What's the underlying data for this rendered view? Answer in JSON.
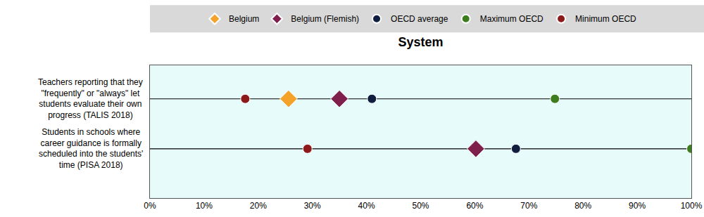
{
  "chart_data": {
    "type": "dot",
    "title": "System",
    "orientation": "horizontal",
    "legend": "top",
    "grid": false,
    "categories": [
      "Teachers reporting that they \"frequently\" or \"always\" let students evaluate their own progress (TALIS 2018)",
      "Students in schools where career guidance is formally scheduled into the students' time (PISA 2018)"
    ],
    "series": [
      {
        "name": "Belgium",
        "color": "#f5a22a",
        "marker": "diamond",
        "values": [
          25.6,
          null
        ]
      },
      {
        "name": "Belgium (Flemish)",
        "color": "#7f1f4b",
        "marker": "diamond",
        "values": [
          35.0,
          60.2
        ]
      },
      {
        "name": "OECD average",
        "color": "#0f1d3f",
        "marker": "circle",
        "values": [
          41.0,
          67.6
        ]
      },
      {
        "name": "Maximum OECD",
        "color": "#3d7d1f",
        "marker": "circle",
        "values": [
          74.8,
          100
        ]
      },
      {
        "name": "Minimum OECD",
        "color": "#8c1a1a",
        "marker": "circle",
        "values": [
          17.6,
          29.1
        ]
      }
    ],
    "xlim": [
      0,
      100
    ],
    "xticks": [
      {
        "value": 0,
        "label": "0%"
      },
      {
        "value": 10,
        "label": "10%"
      },
      {
        "value": 20,
        "label": "20%"
      },
      {
        "value": 30,
        "label": "30%"
      },
      {
        "value": 40,
        "label": "40%"
      },
      {
        "value": 50,
        "label": "50%"
      },
      {
        "value": 60,
        "label": "60%"
      },
      {
        "value": 70,
        "label": "70%"
      },
      {
        "value": 80,
        "label": "80%"
      },
      {
        "value": 90,
        "label": "90%"
      },
      {
        "value": 100,
        "label": "100%"
      }
    ]
  }
}
